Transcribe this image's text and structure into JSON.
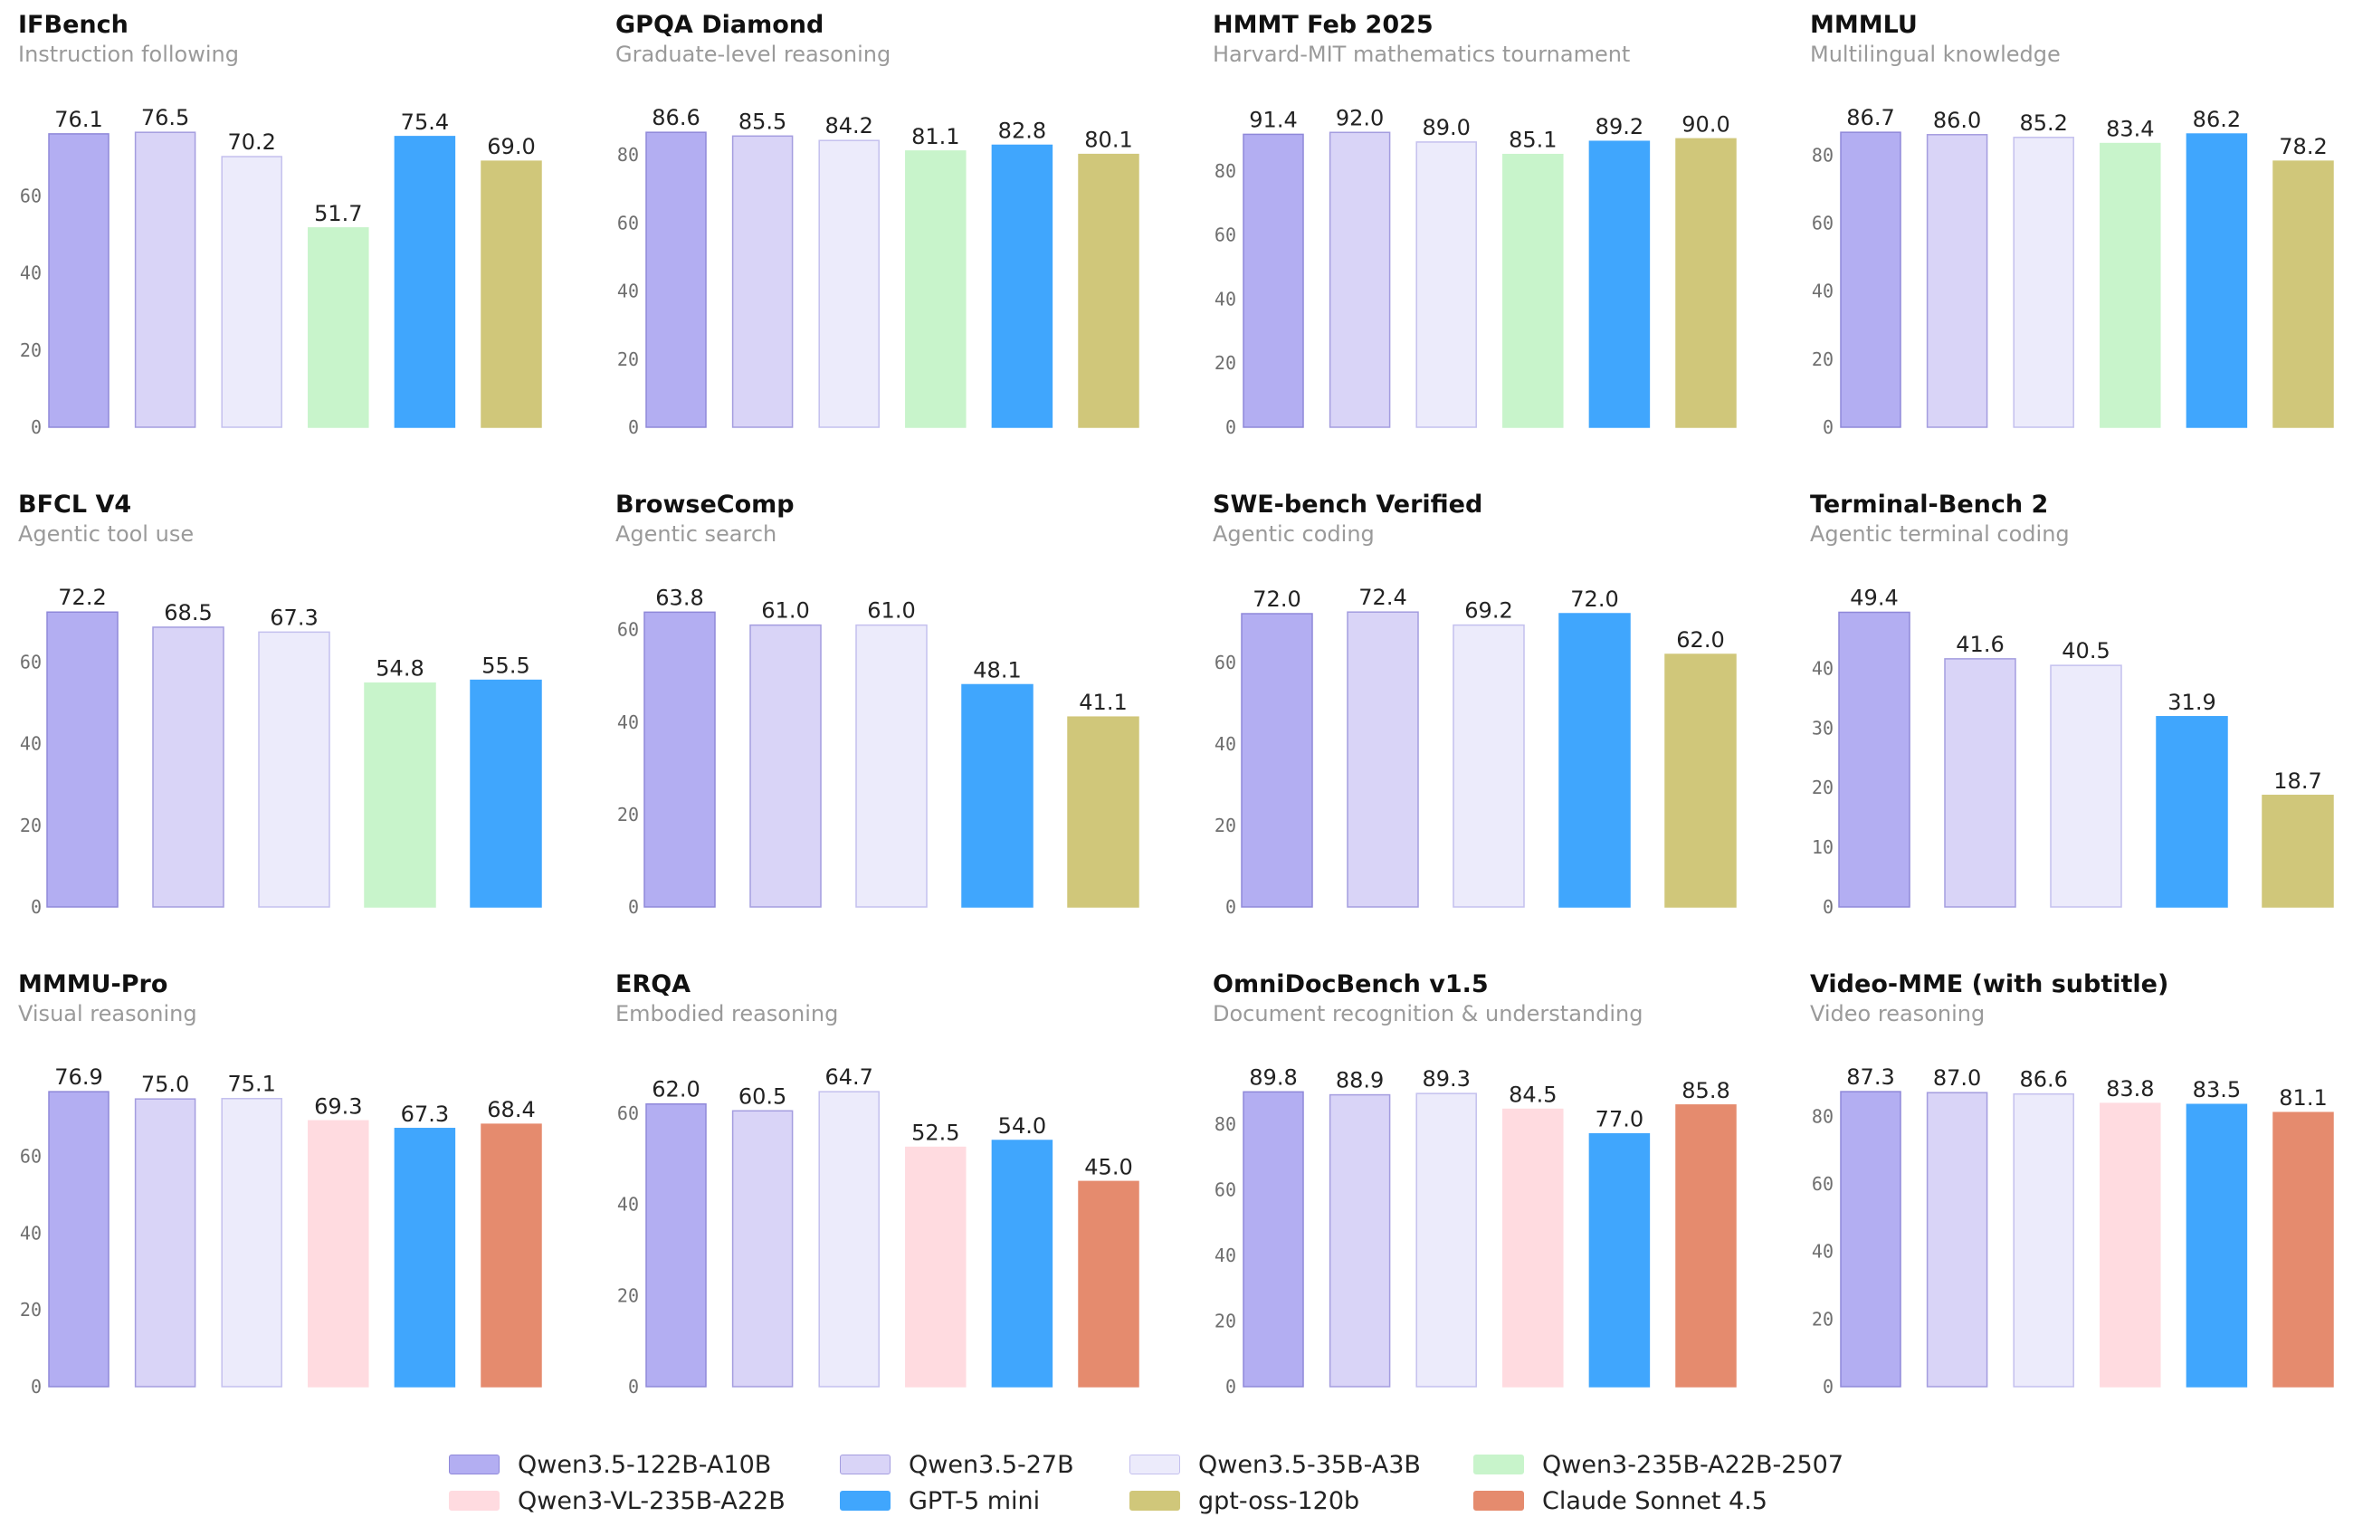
{
  "models": [
    {
      "name": "Qwen3.5-122B-A10B",
      "color": "#b3aef2",
      "edge": "#8f88d9"
    },
    {
      "name": "Qwen3.5-27B",
      "color": "#d9d4f7",
      "edge": "#a49ddf"
    },
    {
      "name": "Qwen3.5-35B-A3B",
      "color": "#ecebfb",
      "edge": "#c4c0ee"
    },
    {
      "name": "Qwen3-235B-A22B-2507",
      "color": "#c8f4cb",
      "edge": "#c8f4cb"
    },
    {
      "name": "Qwen3-VL-235B-A22B",
      "color": "#ffdbe0",
      "edge": "#ffdbe0"
    },
    {
      "name": "GPT-5 mini",
      "color": "#40a6fd",
      "edge": "#40a6fd"
    },
    {
      "name": "gpt-oss-120b",
      "color": "#d0c77a",
      "edge": "#d0c77a"
    },
    {
      "name": "Claude Sonnet 4.5",
      "color": "#e58b6e",
      "edge": "#e58b6e"
    }
  ],
  "legend_order": [
    "Qwen3.5-122B-A10B",
    "Qwen3.5-27B",
    "Qwen3.5-35B-A3B",
    "Qwen3-235B-A22B-2507",
    "Qwen3-VL-235B-A22B",
    "GPT-5 mini",
    "gpt-oss-120b",
    "Claude Sonnet 4.5"
  ],
  "chart_data": [
    {
      "type": "bar",
      "title": "IFBench",
      "subtitle": "Instruction following",
      "categories": [
        "Qwen3.5-122B-A10B",
        "Qwen3.5-27B",
        "Qwen3.5-35B-A3B",
        "Qwen3-235B-A22B-2507",
        "GPT-5 mini",
        "gpt-oss-120b"
      ],
      "values": [
        76.1,
        76.5,
        70.2,
        51.7,
        75.4,
        69.0
      ],
      "value_labels": [
        "76.1",
        "76.5",
        "70.2",
        "51.7",
        "75.4",
        "69.0"
      ],
      "yticks": [
        0,
        20,
        40,
        60
      ],
      "ylim": [
        0,
        80.3
      ]
    },
    {
      "type": "bar",
      "title": "GPQA Diamond",
      "subtitle": "Graduate-level reasoning",
      "categories": [
        "Qwen3.5-122B-A10B",
        "Qwen3.5-27B",
        "Qwen3.5-35B-A3B",
        "Qwen3-235B-A22B-2507",
        "GPT-5 mini",
        "gpt-oss-120b"
      ],
      "values": [
        86.6,
        85.5,
        84.2,
        81.1,
        82.8,
        80.1
      ],
      "value_labels": [
        "86.6",
        "85.5",
        "84.2",
        "81.1",
        "82.8",
        "80.1"
      ],
      "yticks": [
        0,
        20,
        40,
        60,
        80
      ],
      "ylim": [
        0,
        90.9
      ]
    },
    {
      "type": "bar",
      "title": "HMMT Feb 2025",
      "subtitle": "Harvard-MIT mathematics tournament",
      "categories": [
        "Qwen3.5-122B-A10B",
        "Qwen3.5-27B",
        "Qwen3.5-35B-A3B",
        "Qwen3-235B-A22B-2507",
        "GPT-5 mini",
        "gpt-oss-120b"
      ],
      "values": [
        91.4,
        92.0,
        89.0,
        85.1,
        89.2,
        90.0
      ],
      "value_labels": [
        "91.4",
        "92.0",
        "89.0",
        "85.1",
        "89.2",
        "90.0"
      ],
      "yticks": [
        0,
        20,
        40,
        60,
        80
      ],
      "ylim": [
        0,
        96.6
      ]
    },
    {
      "type": "bar",
      "title": "MMMLU",
      "subtitle": "Multilingual knowledge",
      "categories": [
        "Qwen3.5-122B-A10B",
        "Qwen3.5-27B",
        "Qwen3.5-35B-A3B",
        "Qwen3-235B-A22B-2507",
        "GPT-5 mini",
        "gpt-oss-120b"
      ],
      "values": [
        86.7,
        86.0,
        85.2,
        83.4,
        86.2,
        78.2
      ],
      "value_labels": [
        "86.7",
        "86.0",
        "85.2",
        "83.4",
        "86.2",
        "78.2"
      ],
      "yticks": [
        0,
        20,
        40,
        60,
        80
      ],
      "ylim": [
        0,
        91.0
      ]
    },
    {
      "type": "bar",
      "title": "BFCL V4",
      "subtitle": "Agentic tool use",
      "categories": [
        "Qwen3.5-122B-A10B",
        "Qwen3.5-27B",
        "Qwen3.5-35B-A3B",
        "Qwen3-235B-A22B-2507",
        "GPT-5 mini"
      ],
      "values": [
        72.2,
        68.5,
        67.3,
        54.8,
        55.5
      ],
      "value_labels": [
        "72.2",
        "68.5",
        "67.3",
        "54.8",
        "55.5"
      ],
      "yticks": [
        0,
        20,
        40,
        60
      ],
      "ylim": [
        0,
        75.8
      ]
    },
    {
      "type": "bar",
      "title": "BrowseComp",
      "subtitle": "Agentic search",
      "categories": [
        "Qwen3.5-122B-A10B",
        "Qwen3.5-27B",
        "Qwen3.5-35B-A3B",
        "GPT-5 mini",
        "gpt-oss-120b"
      ],
      "values": [
        63.8,
        61.0,
        61.0,
        48.1,
        41.1
      ],
      "value_labels": [
        "63.8",
        "61.0",
        "61.0",
        "48.1",
        "41.1"
      ],
      "yticks": [
        0,
        20,
        40,
        60
      ],
      "ylim": [
        0,
        67.0
      ]
    },
    {
      "type": "bar",
      "title": "SWE-bench Verified",
      "subtitle": "Agentic coding",
      "categories": [
        "Qwen3.5-122B-A10B",
        "Qwen3.5-27B",
        "Qwen3.5-35B-A3B",
        "GPT-5 mini",
        "gpt-oss-120b"
      ],
      "values": [
        72.0,
        72.4,
        69.2,
        72.0,
        62.0
      ],
      "value_labels": [
        "72.0",
        "72.4",
        "69.2",
        "72.0",
        "62.0"
      ],
      "yticks": [
        0,
        20,
        40,
        60
      ],
      "ylim": [
        0,
        76.0
      ]
    },
    {
      "type": "bar",
      "title": "Terminal-Bench 2",
      "subtitle": "Agentic terminal coding",
      "categories": [
        "Qwen3.5-122B-A10B",
        "Qwen3.5-27B",
        "Qwen3.5-35B-A3B",
        "GPT-5 mini",
        "gpt-oss-120b"
      ],
      "values": [
        49.4,
        41.6,
        40.5,
        31.9,
        18.7
      ],
      "value_labels": [
        "49.4",
        "41.6",
        "40.5",
        "31.9",
        "18.7"
      ],
      "yticks": [
        0,
        10,
        20,
        30,
        40
      ],
      "ylim": [
        0,
        51.9
      ]
    },
    {
      "type": "bar",
      "title": "MMMU-Pro",
      "subtitle": "Visual reasoning",
      "categories": [
        "Qwen3.5-122B-A10B",
        "Qwen3.5-27B",
        "Qwen3.5-35B-A3B",
        "Qwen3-VL-235B-A22B",
        "GPT-5 mini",
        "Claude Sonnet 4.5"
      ],
      "values": [
        76.9,
        75.0,
        75.1,
        69.3,
        67.3,
        68.4
      ],
      "value_labels": [
        "76.9",
        "75.0",
        "75.1",
        "69.3",
        "67.3",
        "68.4"
      ],
      "yticks": [
        0,
        20,
        40,
        60
      ],
      "ylim": [
        0,
        80.7
      ]
    },
    {
      "type": "bar",
      "title": "ERQA",
      "subtitle": "Embodied reasoning",
      "categories": [
        "Qwen3.5-122B-A10B",
        "Qwen3.5-27B",
        "Qwen3.5-35B-A3B",
        "Qwen3-VL-235B-A22B",
        "GPT-5 mini",
        "Claude Sonnet 4.5"
      ],
      "values": [
        62.0,
        60.5,
        64.7,
        52.5,
        54.0,
        45.0
      ],
      "value_labels": [
        "62.0",
        "60.5",
        "64.7",
        "52.5",
        "54.0",
        "45.0"
      ],
      "yticks": [
        0,
        20,
        40,
        60
      ],
      "ylim": [
        0,
        67.9
      ]
    },
    {
      "type": "bar",
      "title": "OmniDocBench v1.5",
      "subtitle": "Document recognition & understanding",
      "categories": [
        "Qwen3.5-122B-A10B",
        "Qwen3.5-27B",
        "Qwen3.5-35B-A3B",
        "Qwen3-VL-235B-A22B",
        "GPT-5 mini",
        "Claude Sonnet 4.5"
      ],
      "values": [
        89.8,
        88.9,
        89.3,
        84.5,
        77.0,
        85.8
      ],
      "value_labels": [
        "89.8",
        "88.9",
        "89.3",
        "84.5",
        "77.0",
        "85.8"
      ],
      "yticks": [
        0,
        20,
        40,
        60,
        80
      ],
      "ylim": [
        0,
        94.3
      ]
    },
    {
      "type": "bar",
      "title": "Video-MME (with subtitle)",
      "subtitle": "Video reasoning",
      "categories": [
        "Qwen3.5-122B-A10B",
        "Qwen3.5-27B",
        "Qwen3.5-35B-A3B",
        "Qwen3-VL-235B-A22B",
        "GPT-5 mini",
        "Claude Sonnet 4.5"
      ],
      "values": [
        87.3,
        87.0,
        86.6,
        83.8,
        83.5,
        81.1
      ],
      "value_labels": [
        "87.3",
        "87.0",
        "86.6",
        "83.8",
        "83.5",
        "81.1"
      ],
      "yticks": [
        0,
        20,
        40,
        60,
        80
      ],
      "ylim": [
        0,
        91.6
      ]
    }
  ]
}
